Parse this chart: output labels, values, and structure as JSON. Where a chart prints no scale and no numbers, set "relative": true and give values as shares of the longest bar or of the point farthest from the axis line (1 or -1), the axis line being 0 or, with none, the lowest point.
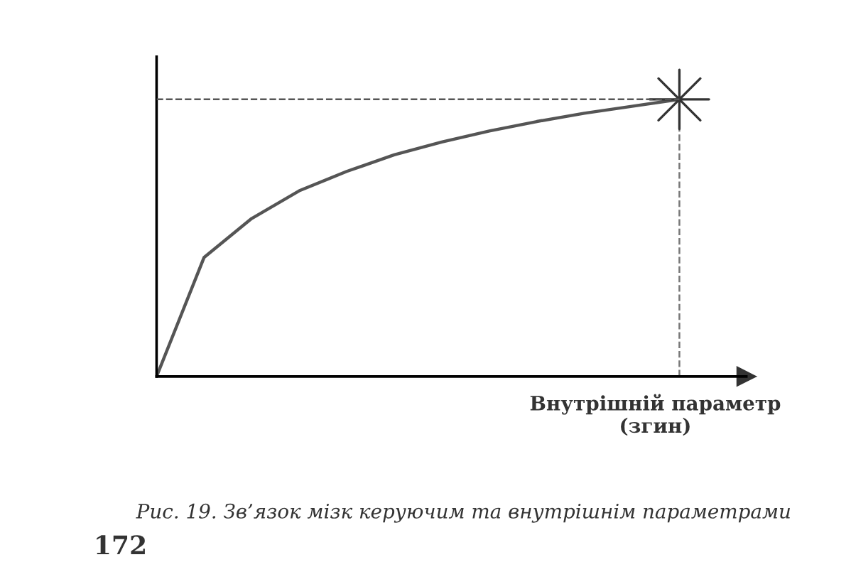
{
  "chart_data": {
    "type": "line",
    "relative": true,
    "xlabel": "Внутрішній параметр\n(згин)",
    "categories": [
      null,
      null,
      null,
      null,
      null,
      null,
      null,
      null,
      null,
      null,
      null,
      null
    ],
    "series": [
      {
        "color": "#555555",
        "values": [
          0,
          0.43,
          0.57,
          0.67,
          0.74,
          0.8,
          0.846,
          0.886,
          0.92,
          0.95,
          0.975,
          1
        ]
      }
    ],
    "ref_lines": [
      {
        "axis": "y",
        "value": null,
        "line_style": "dashed",
        "color": "#555555"
      },
      {
        "axis": "x",
        "value": null,
        "line_style": "dashed",
        "color": "#777777"
      }
    ],
    "annotations": [
      "Рис. 19. Зв’язок мізк керуючим та внутрішнім параметрами",
      "172"
    ]
  }
}
